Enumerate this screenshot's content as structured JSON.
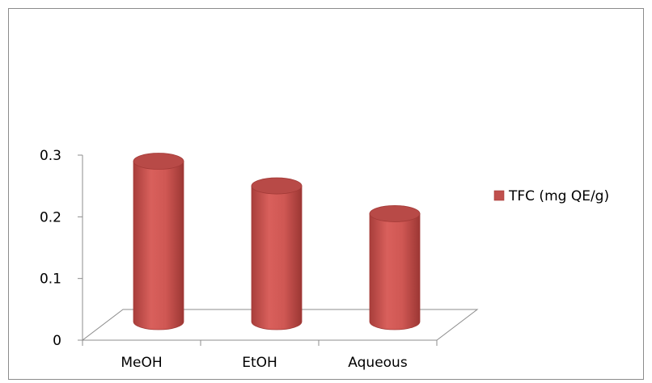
{
  "chart_data": {
    "type": "bar",
    "style": "3d-cylinder",
    "categories": [
      "MeOH",
      "EtOH",
      "Aqueous"
    ],
    "series": [
      {
        "name": "TFC (mg QE/g)",
        "values": [
          0.26,
          0.22,
          0.175
        ],
        "color": "#c0504d"
      }
    ],
    "ylim": [
      0,
      0.3
    ],
    "yticks": [
      "0",
      "0.1",
      "0.2",
      "0.3"
    ],
    "legend_position": "right",
    "grid": false
  }
}
